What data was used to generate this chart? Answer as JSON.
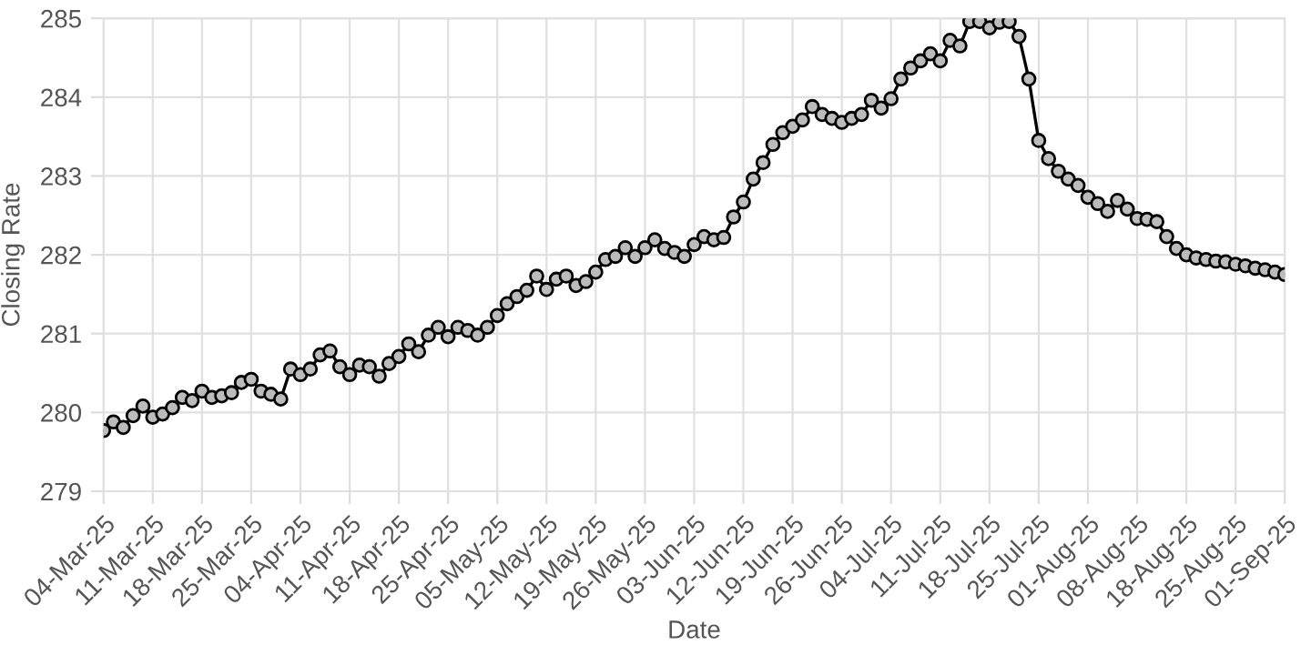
{
  "chart_data": {
    "type": "line",
    "xlabel": "Date",
    "ylabel": "Closing Rate",
    "categories": [
      "04-Mar-25",
      null,
      null,
      null,
      null,
      "11-Mar-25",
      null,
      null,
      null,
      null,
      "18-Mar-25",
      null,
      null,
      null,
      null,
      "25-Mar-25",
      null,
      null,
      null,
      null,
      "04-Apr-25",
      null,
      null,
      null,
      null,
      "11-Apr-25",
      null,
      null,
      null,
      null,
      "18-Apr-25",
      null,
      null,
      null,
      null,
      "25-Apr-25",
      null,
      null,
      null,
      null,
      "05-May-25",
      null,
      null,
      null,
      null,
      "12-May-25",
      null,
      null,
      null,
      null,
      "19-May-25",
      null,
      null,
      null,
      null,
      "26-May-25",
      null,
      null,
      null,
      null,
      "03-Jun-25",
      null,
      null,
      null,
      null,
      "12-Jun-25",
      null,
      null,
      null,
      null,
      "19-Jun-25",
      null,
      null,
      null,
      null,
      "26-Jun-25",
      null,
      null,
      null,
      null,
      "04-Jul-25",
      null,
      null,
      null,
      null,
      "11-Jul-25",
      null,
      null,
      null,
      null,
      "18-Jul-25",
      null,
      null,
      null,
      null,
      "25-Jul-25",
      null,
      null,
      null,
      null,
      "01-Aug-25",
      null,
      null,
      null,
      null,
      "08-Aug-25",
      null,
      null,
      null,
      null,
      "18-Aug-25",
      null,
      null,
      null,
      null,
      "25-Aug-25",
      null,
      null,
      null,
      null,
      "01-Sep-25"
    ],
    "series": [
      {
        "color": "#000000",
        "values": [
          279.77,
          279.88,
          279.81,
          279.96,
          280.08,
          279.94,
          279.98,
          280.06,
          280.19,
          280.15,
          280.27,
          280.19,
          280.21,
          280.25,
          280.38,
          280.42,
          280.27,
          280.23,
          280.17,
          280.55,
          280.48,
          280.55,
          280.73,
          280.78,
          280.58,
          280.48,
          280.6,
          280.58,
          280.46,
          280.62,
          280.71,
          280.87,
          280.77,
          280.98,
          281.08,
          280.96,
          281.08,
          281.04,
          280.98,
          281.08,
          281.23,
          281.38,
          281.47,
          281.55,
          281.73,
          281.56,
          281.69,
          281.73,
          281.61,
          281.66,
          281.78,
          281.94,
          281.98,
          282.09,
          281.98,
          282.09,
          282.19,
          282.08,
          282.03,
          281.98,
          282.13,
          282.23,
          282.19,
          282.22,
          282.48,
          282.67,
          282.96,
          283.17,
          283.4,
          283.55,
          283.63,
          283.71,
          283.88,
          283.78,
          283.73,
          283.68,
          283.73,
          283.78,
          283.96,
          283.86,
          283.98,
          284.23,
          284.37,
          284.46,
          284.55,
          284.46,
          284.72,
          284.65,
          284.96,
          284.96,
          284.88,
          284.95,
          284.96,
          284.77,
          284.23,
          283.45,
          283.22,
          283.06,
          282.96,
          282.88,
          282.73,
          282.65,
          282.55,
          282.69,
          282.58,
          282.46,
          282.45,
          282.42,
          282.23,
          282.08,
          282.0,
          281.96,
          281.94,
          281.92,
          281.91,
          281.88,
          281.86,
          281.83,
          281.81,
          281.78,
          281.75
        ]
      }
    ],
    "ylim": [
      279,
      285
    ],
    "yticks": [
      279,
      280,
      281,
      282,
      283,
      284,
      285
    ],
    "grid": true,
    "marker": "circle",
    "line_style": "solid"
  }
}
